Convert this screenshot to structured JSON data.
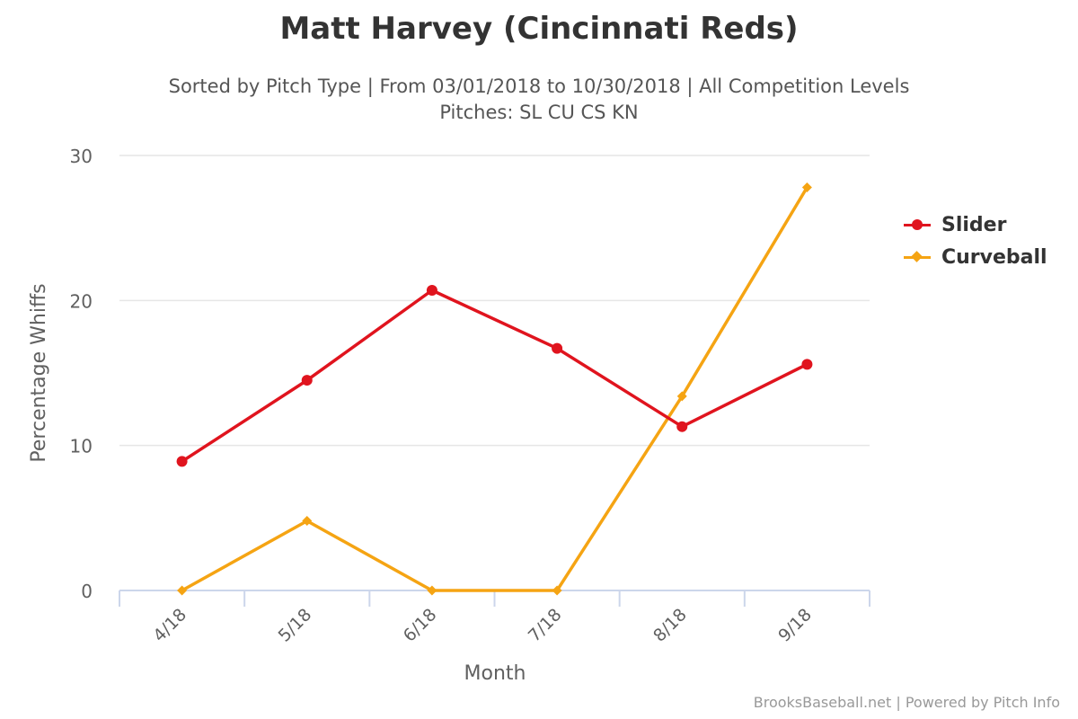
{
  "header": {
    "title": "Matt Harvey (Cincinnati Reds)",
    "subtitle_line1": "Sorted by Pitch Type | From 03/01/2018 to 10/30/2018 | All Competition Levels",
    "subtitle_line2": "Pitches: SL CU CS KN"
  },
  "credits": "BrooksBaseball.net | Powered by Pitch Info",
  "chart_data": {
    "type": "line",
    "title": "Matt Harvey (Cincinnati Reds)",
    "subtitle": "Sorted by Pitch Type | From 03/01/2018 to 10/30/2018 | All Competition Levels Pitches: SL CU CS KN",
    "xlabel": "Month",
    "ylabel": "Percentage Whiffs",
    "categories": [
      "4/18",
      "5/18",
      "6/18",
      "7/18",
      "8/18",
      "9/18"
    ],
    "ylim": [
      0,
      30
    ],
    "yticks": [
      "0",
      "10",
      "20",
      "30"
    ],
    "grid": true,
    "legend_position": "right",
    "series": [
      {
        "name": "Slider",
        "color": "#e0141e",
        "marker": "circle",
        "values": [
          8.9,
          14.5,
          20.7,
          16.7,
          11.3,
          15.6
        ]
      },
      {
        "name": "Curveball",
        "color": "#f5a413",
        "marker": "diamond",
        "values": [
          0,
          4.8,
          0,
          0,
          13.4,
          27.8
        ]
      }
    ]
  }
}
